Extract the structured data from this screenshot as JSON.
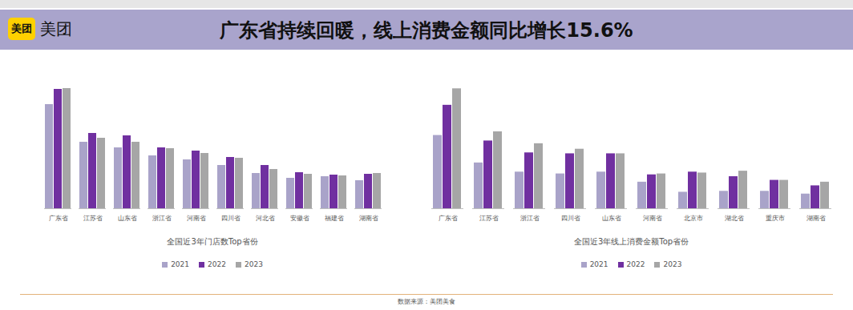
{
  "header": {
    "logo": "美团",
    "title": "广东省持续回暖，线上消费金额同比增长15.6%"
  },
  "chart_data": [
    {
      "type": "bar",
      "title": "全国近3年门店数Top省份",
      "categories": [
        "广东省",
        "江苏省",
        "山东省",
        "浙江省",
        "河南省",
        "四川省",
        "河北省",
        "安徽省",
        "福建省",
        "湖南省"
      ],
      "series": [
        {
          "name": "2021",
          "color": "#a9a3c9",
          "values": [
            130,
            83,
            76,
            66,
            61,
            54,
            44,
            38,
            40,
            35
          ]
        },
        {
          "name": "2022",
          "color": "#7030a0",
          "values": [
            149,
            94,
            91,
            76,
            72,
            64,
            54,
            45,
            42,
            43
          ]
        },
        {
          "name": "2023",
          "color": "#a6a6a6",
          "values": [
            150,
            88,
            83,
            75,
            69,
            63,
            49,
            43,
            41,
            44
          ]
        }
      ],
      "ylim": [
        0,
        160
      ],
      "tick_labels": "x",
      "grid": false,
      "legend": "bottom"
    },
    {
      "type": "bar",
      "title": "全国近3年线上消费金额Top省份",
      "categories": [
        "广东省",
        "江苏省",
        "浙江省",
        "四川省",
        "山东省",
        "河南省",
        "北京市",
        "湖北省",
        "重庆市",
        "湖南省"
      ],
      "series": [
        {
          "name": "2021",
          "color": "#a9a3c9",
          "values": [
            80,
            50,
            40,
            38,
            40,
            29,
            18,
            19,
            19,
            16
          ]
        },
        {
          "name": "2022",
          "color": "#7030a0",
          "values": [
            113,
            74,
            61,
            60,
            60,
            37,
            40,
            35,
            31,
            25
          ]
        },
        {
          "name": "2023",
          "color": "#a6a6a6",
          "values": [
            131,
            84,
            71,
            65,
            60,
            38,
            39,
            41,
            31,
            29
          ]
        }
      ],
      "ylim": [
        0,
        140
      ],
      "tick_labels": "x",
      "grid": false,
      "legend": "bottom"
    }
  ],
  "source": "数据来源：美团美食"
}
